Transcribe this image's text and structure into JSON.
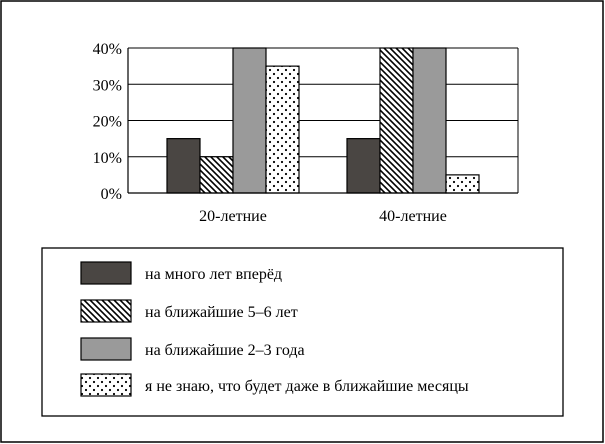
{
  "chart_data": {
    "type": "bar",
    "categories": [
      "20-летние",
      "40-летние"
    ],
    "series": [
      {
        "name": "на много лет вперёд",
        "values": [
          15,
          15
        ],
        "pattern": "solid-dark",
        "color": "#4a4643"
      },
      {
        "name": "на ближайшие 5–6 лет",
        "values": [
          10,
          40
        ],
        "pattern": "diagonal-hatch",
        "color": "#000000"
      },
      {
        "name": "на ближайшие 2–3 года",
        "values": [
          40,
          40
        ],
        "pattern": "solid-gray",
        "color": "#9a9a9a"
      },
      {
        "name": "я не знаю, что будет даже в ближайшие месяцы",
        "values": [
          35,
          5
        ],
        "pattern": "dots",
        "color": "#000000"
      }
    ],
    "ylim": [
      0,
      40
    ],
    "yticks": [
      {
        "value": 0,
        "label": "0%"
      },
      {
        "value": 10,
        "label": "10%"
      },
      {
        "value": 20,
        "label": "20%"
      },
      {
        "value": 30,
        "label": "30%"
      },
      {
        "value": 40,
        "label": "40%"
      }
    ],
    "grid": true,
    "legend_position": "bottom"
  }
}
